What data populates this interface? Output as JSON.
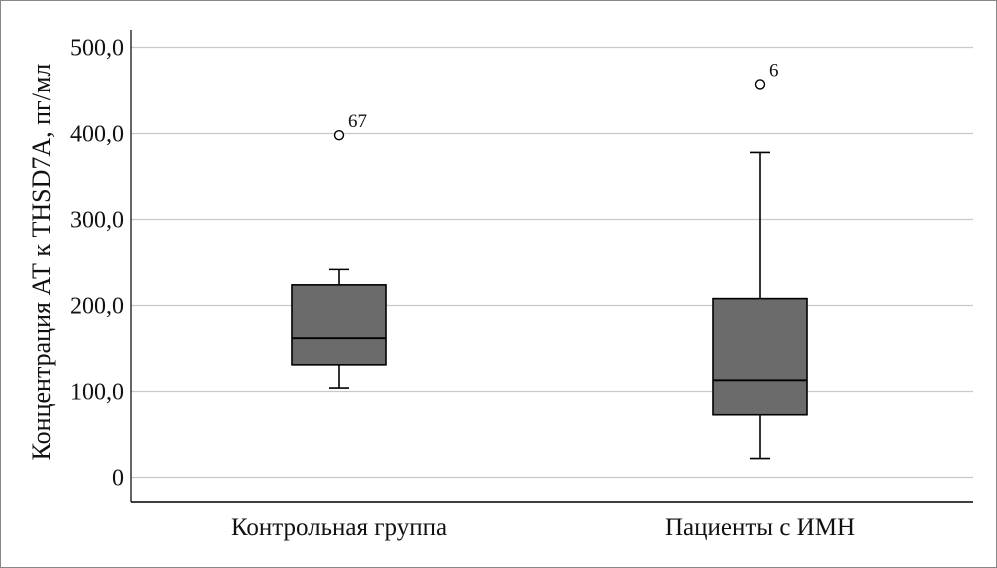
{
  "chart_data": {
    "type": "box",
    "ylabel": "Концентрация АТ к THSD7A, пг/мл",
    "ylim": [
      0,
      500
    ],
    "yticks": [
      {
        "value": 0,
        "label": "0"
      },
      {
        "value": 100,
        "label": "100,0"
      },
      {
        "value": 200,
        "label": "200,0"
      },
      {
        "value": 300,
        "label": "300,0"
      },
      {
        "value": 400,
        "label": "400,0"
      },
      {
        "value": 500,
        "label": "500,0"
      }
    ],
    "grid": true,
    "box_color": "#6b6b6b",
    "categories": [
      {
        "label": "Контрольная группа",
        "whisker_low": 104,
        "q1": 131,
        "median": 162,
        "q3": 224,
        "whisker_high": 242,
        "outliers": [
          {
            "value": 398,
            "label": "67"
          }
        ]
      },
      {
        "label": "Пациенты с ИМН",
        "whisker_low": 22,
        "q1": 73,
        "median": 113,
        "q3": 208,
        "whisker_high": 378,
        "outliers": [
          {
            "value": 457,
            "label": "6"
          }
        ]
      }
    ]
  }
}
